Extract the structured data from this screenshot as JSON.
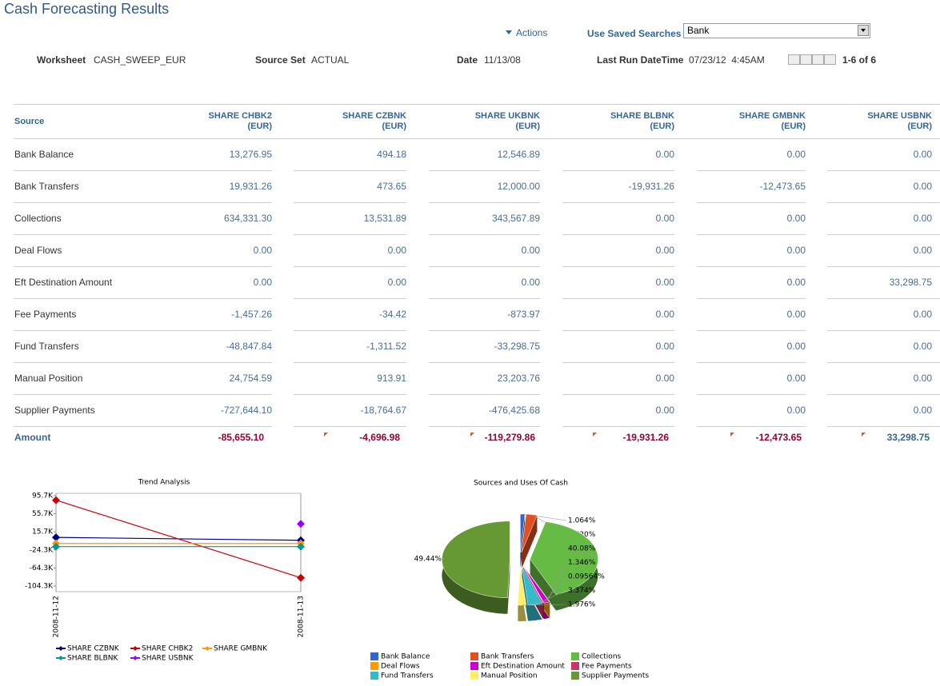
{
  "header": {
    "title": "Cash Forecasting Results",
    "actions": "Actions",
    "saved_searches_label": "Use Saved Searches",
    "saved_search_value": "Bank"
  },
  "info": [
    {
      "label": "Worksheet",
      "value": "CASH_SWEEP_EUR"
    },
    {
      "label": "Source Set",
      "value": "ACTUAL"
    },
    {
      "label": "Date",
      "value": "11/13/08"
    },
    {
      "label": "Last Run DateTime",
      "value": "07/23/12  4:45AM"
    }
  ],
  "pagination": "1-6 of 6",
  "table": {
    "source_header": "Source",
    "columns": [
      {
        "name": "SHARE CHBK2",
        "unit": "(EUR)"
      },
      {
        "name": "SHARE CZBNK",
        "unit": "(EUR)"
      },
      {
        "name": "SHARE UKBNK",
        "unit": "(EUR)"
      },
      {
        "name": "SHARE BLBNK",
        "unit": "(EUR)"
      },
      {
        "name": "SHARE GMBNK",
        "unit": "(EUR)"
      },
      {
        "name": "SHARE USBNK",
        "unit": "(EUR)"
      }
    ],
    "rows": [
      {
        "label": "Bank Balance",
        "values": [
          "13,276.95",
          "494.18",
          "12,546.89",
          "0.00",
          "0.00",
          "0.00"
        ]
      },
      {
        "label": "Bank Transfers",
        "values": [
          "19,931.26",
          "473.65",
          "12,000.00",
          "-19,931.26",
          "-12,473.65",
          "0.00"
        ]
      },
      {
        "label": "Collections",
        "values": [
          "634,331.30",
          "13,531.89",
          "343,567.89",
          "0.00",
          "0.00",
          "0.00"
        ]
      },
      {
        "label": "Deal Flows",
        "values": [
          "0.00",
          "0.00",
          "0.00",
          "0.00",
          "0.00",
          "0.00"
        ]
      },
      {
        "label": "Eft Destination Amount",
        "values": [
          "0.00",
          "0.00",
          "0.00",
          "0.00",
          "0.00",
          "33,298.75"
        ]
      },
      {
        "label": "Fee Payments",
        "values": [
          "-1,457.26",
          "-34.42",
          "-873.97",
          "0.00",
          "0.00",
          "0.00"
        ]
      },
      {
        "label": "Fund Transfers",
        "values": [
          "-48,847.84",
          "-1,311.52",
          "-33,298.75",
          "0.00",
          "0.00",
          "0.00"
        ]
      },
      {
        "label": "Manual Position",
        "values": [
          "24,754.59",
          "913.91",
          "23,203.76",
          "0.00",
          "0.00",
          "0.00"
        ]
      },
      {
        "label": "Supplier Payments",
        "values": [
          "-727,644.10",
          "-18,764.67",
          "-476,425.68",
          "0.00",
          "0.00",
          "0.00"
        ]
      }
    ],
    "total": {
      "label": "Amount",
      "values": [
        "-85,655.10",
        "-4,696.98",
        "-119,279.86",
        "-19,931.26",
        "-12,473.65",
        "33,298.75"
      ]
    }
  },
  "chart_data": [
    {
      "type": "line",
      "title": "Trend Analysis",
      "categories": [
        "2008-11-12",
        "2008-11-13"
      ],
      "ylim": [
        -116500,
        100900
      ],
      "yticks": [
        {
          "value": 95700,
          "label": "95.7K"
        },
        {
          "value": 55700,
          "label": "55.7K"
        },
        {
          "value": 15700,
          "label": "15.7K"
        },
        {
          "value": -24300,
          "label": "-24.3K"
        },
        {
          "value": -64300,
          "label": "-64.3K"
        },
        {
          "value": -104300,
          "label": "-104.3K"
        }
      ],
      "series": [
        {
          "name": "SHARE CZBNK",
          "color": "#00008b",
          "values": [
            3500,
            -3000
          ]
        },
        {
          "name": "SHARE CHBK2",
          "color": "#cc0000",
          "values": [
            85700,
            -85700
          ]
        },
        {
          "name": "SHARE GMBNK",
          "color": "#ff9900",
          "values": [
            -10000,
            -10000
          ]
        },
        {
          "name": "SHARE BLBNK",
          "color": "#009999",
          "values": [
            -17000,
            -17000
          ]
        },
        {
          "name": "SHARE USBNK",
          "color": "#9900ff",
          "values": [
            null,
            33300
          ]
        }
      ]
    },
    {
      "type": "pie",
      "title": "Sources and Uses Of Cash",
      "categories": [
        "Bank Balance",
        "Bank Transfers",
        "Collections",
        "Deal Flows",
        "Eft Destination Amount",
        "Fee Payments",
        "Fund Transfers",
        "Manual Position",
        "Supplier Payments"
      ],
      "values": [
        1.064,
        2.62,
        40.08,
        0,
        1.346,
        0.09564,
        3.374,
        1.976,
        49.44
      ],
      "value_labels": [
        "1.064%",
        "2.620%",
        "40.08%",
        null,
        "1.346%",
        "0.09564%",
        "3.374%",
        "1.976%",
        "49.44%"
      ],
      "colors": [
        "#3366cc",
        "#e05020",
        "#66bb44",
        "#ff9900",
        "#cc00cc",
        "#cc3366",
        "#33bbcc",
        "#ffee66",
        "#669933"
      ]
    }
  ]
}
